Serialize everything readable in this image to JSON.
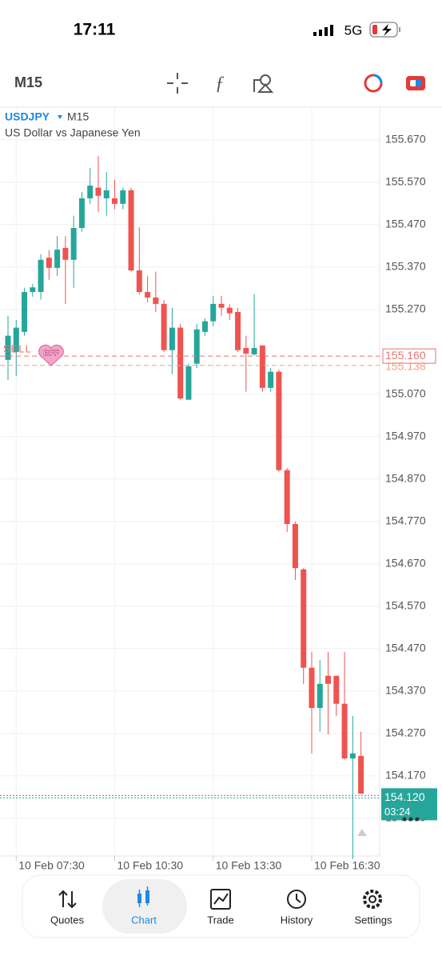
{
  "status_bar": {
    "time": "17:11",
    "network": "5G"
  },
  "toolbar": {
    "timeframe": "M15"
  },
  "chart_data": {
    "type": "candlestick",
    "symbol": "USDJPY",
    "timeframe": "M15",
    "subtitle": "US Dollar vs Japanese Yen",
    "categories": [
      null,
      "10 Feb 07:30",
      null,
      null,
      null,
      null,
      null,
      null,
      null,
      null,
      null,
      null,
      null,
      "10 Feb 10:30",
      null,
      null,
      null,
      null,
      null,
      null,
      null,
      null,
      null,
      null,
      null,
      "10 Feb 13:30",
      null,
      null,
      null,
      null,
      null,
      null,
      null,
      null,
      null,
      null,
      null,
      "10 Feb 16:30",
      null,
      null,
      null,
      null,
      null,
      null
    ],
    "open": [
      155.151,
      155.17,
      155.217,
      155.311,
      155.311,
      155.392,
      155.368,
      155.415,
      155.387,
      155.462,
      155.532,
      155.557,
      155.532,
      155.532,
      155.519,
      155.551,
      155.362,
      155.311,
      155.298,
      155.283,
      155.174,
      155.227,
      155.057,
      155.142,
      155.217,
      155.242,
      155.283,
      155.274,
      155.264,
      155.179,
      155.164,
      155.185,
      155.085,
      155.123,
      154.891,
      154.764,
      154.657,
      154.425,
      154.33,
      154.406,
      154.406,
      154.34,
      154.211,
      154.217
    ],
    "high": [
      155.255,
      155.245,
      155.321,
      155.33,
      155.4,
      155.41,
      155.443,
      155.443,
      155.491,
      155.547,
      155.604,
      155.632,
      155.594,
      155.576,
      155.557,
      155.557,
      155.464,
      155.349,
      155.359,
      155.292,
      155.274,
      155.236,
      155.142,
      155.236,
      155.249,
      155.302,
      155.302,
      155.283,
      155.274,
      155.208,
      155.306,
      155.185,
      155.132,
      155.128,
      154.896,
      154.77,
      154.66,
      154.462,
      154.443,
      154.462,
      154.406,
      154.462,
      154.311,
      154.274
    ],
    "low": [
      155.104,
      155.113,
      155.208,
      155.3,
      155.293,
      155.34,
      155.349,
      155.283,
      155.321,
      155.453,
      155.519,
      155.5,
      155.491,
      155.506,
      155.506,
      155.359,
      155.305,
      155.287,
      155.264,
      155.17,
      155.117,
      155.057,
      155.057,
      155.132,
      155.208,
      155.23,
      155.255,
      155.245,
      155.17,
      155.076,
      155.161,
      155.076,
      155.076,
      154.887,
      154.745,
      154.632,
      154.387,
      154.223,
      154.274,
      154.268,
      154.311,
      154.208,
      153.974,
      154.128
    ],
    "close": [
      155.208,
      155.227,
      155.311,
      155.322,
      155.387,
      155.368,
      155.411,
      155.387,
      155.462,
      155.532,
      155.562,
      155.538,
      155.551,
      155.519,
      155.551,
      155.362,
      155.311,
      155.298,
      155.283,
      155.174,
      155.227,
      155.06,
      155.136,
      155.223,
      155.242,
      155.283,
      155.274,
      155.261,
      155.174,
      155.166,
      155.179,
      155.085,
      155.123,
      154.891,
      154.764,
      154.66,
      154.425,
      154.33,
      154.387,
      154.387,
      154.34,
      154.211,
      154.223,
      154.128
    ],
    "colors": {
      "up": "#26a69a",
      "down": "#ef5350"
    },
    "ylim": [
      153.981,
      155.745
    ],
    "yticks": [
      {
        "value": 155.67,
        "label": "155.670"
      },
      {
        "value": 155.57,
        "label": "155.570"
      },
      {
        "value": 155.47,
        "label": "155.470"
      },
      {
        "value": 155.37,
        "label": "155.370"
      },
      {
        "value": 155.27,
        "label": "155.270"
      },
      {
        "value": 155.07,
        "label": "155.070"
      },
      {
        "value": 154.97,
        "label": "154.970"
      },
      {
        "value": 154.87,
        "label": "154.870"
      },
      {
        "value": 154.77,
        "label": "154.770"
      },
      {
        "value": 154.67,
        "label": "154.670"
      },
      {
        "value": 154.57,
        "label": "154.570"
      },
      {
        "value": 154.47,
        "label": "154.470"
      },
      {
        "value": 154.37,
        "label": "154.370"
      },
      {
        "value": 154.27,
        "label": "154.270"
      },
      {
        "value": 154.17,
        "label": "154.170"
      },
      {
        "value": 154.07,
        "label": "154.070"
      }
    ],
    "grid": true,
    "price_lines": [
      {
        "value": 155.16,
        "label": "155.160",
        "color": "#e57373"
      },
      {
        "value": 155.138,
        "label": "155.138",
        "color": "#f0a08a"
      }
    ],
    "bid": {
      "value": 154.12,
      "label": "154.120",
      "color": "#26a69a",
      "timer": "03:24"
    },
    "order": {
      "label": "SELL",
      "badge": "BFF"
    }
  },
  "nav": [
    {
      "label": "Quotes"
    },
    {
      "label": "Chart"
    },
    {
      "label": "Trade"
    },
    {
      "label": "History"
    },
    {
      "label": "Settings"
    }
  ]
}
